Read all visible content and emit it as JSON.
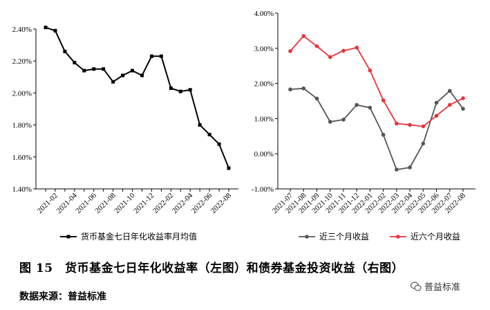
{
  "caption": "图 15　货币基金七日年化收益率（左图）和债券基金投资收益（右图）",
  "source": "数据来源：普益标准",
  "watermark": {
    "text": "普益标准",
    "icon": "wechat-icon"
  },
  "chart_data": [
    {
      "type": "line",
      "x": [
        "2021-01",
        "2021-02",
        "2021-03",
        "2021-04",
        "2021-05",
        "2021-06",
        "2021-07",
        "2021-08",
        "2021-09",
        "2021-10",
        "2021-11",
        "2021-12",
        "2022-01",
        "2022-02",
        "2022-03",
        "2022-04",
        "2022-05",
        "2022-06",
        "2022-07",
        "2022-08"
      ],
      "x_tick_labels": [
        "2021-02",
        "2021-04",
        "2021-06",
        "2021-08",
        "2021-10",
        "2021-12",
        "2022-02",
        "2022-04",
        "2022-06",
        "2022-08"
      ],
      "series": [
        {
          "name": "货币基金七日年化收益率月均值",
          "color": "#000000",
          "values": [
            2.41,
            2.39,
            2.26,
            2.19,
            2.14,
            2.15,
            2.15,
            2.07,
            2.11,
            2.14,
            2.11,
            2.23,
            2.23,
            2.03,
            2.01,
            2.02,
            1.8,
            1.74,
            1.68,
            1.53
          ]
        }
      ],
      "ylim": [
        1.4,
        2.4
      ],
      "y_ticks": [
        "1.40%",
        "1.60%",
        "1.80%",
        "2.00%",
        "2.20%",
        "2.40%"
      ],
      "legend": "bottom",
      "grid": false
    },
    {
      "type": "line",
      "x": [
        "2021-07",
        "2021-08",
        "2021-09",
        "2021-10",
        "2021-11",
        "2021-12",
        "2022-01",
        "2022-02",
        "2022-03",
        "2022-04",
        "2022-05",
        "2022-06",
        "2022-07",
        "2022-08"
      ],
      "x_tick_labels": [
        "2021-07",
        "2021-08",
        "2021-09",
        "2021-10",
        "2021-11",
        "2021-12",
        "2022-01",
        "2022-02",
        "2022-03",
        "2022-04",
        "2022-05",
        "2022-06",
        "2022-07",
        "2022-08"
      ],
      "series": [
        {
          "name": "近三个月收益",
          "color": "#555555",
          "values": [
            1.83,
            1.86,
            1.57,
            0.91,
            0.97,
            1.39,
            1.31,
            0.54,
            -0.45,
            -0.39,
            0.29,
            1.45,
            1.79,
            1.28
          ]
        },
        {
          "name": "近六个月收益",
          "color": "#e8343a",
          "values": [
            2.92,
            3.35,
            3.06,
            2.75,
            2.93,
            3.02,
            2.37,
            1.52,
            0.86,
            0.82,
            0.78,
            1.08,
            1.39,
            1.58
          ]
        }
      ],
      "ylim": [
        -1.0,
        4.0
      ],
      "y_ticks": [
        "-1.00%",
        "0.00%",
        "1.00%",
        "2.00%",
        "3.00%",
        "4.00%"
      ],
      "legend": "bottom",
      "grid": false
    }
  ]
}
